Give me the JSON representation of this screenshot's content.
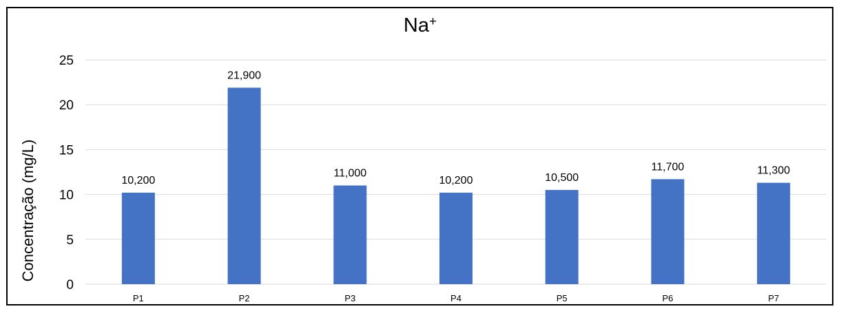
{
  "chart_data": {
    "type": "bar",
    "title": "Na",
    "title_superscript": "+",
    "xlabel": "",
    "ylabel": "Concentração (mg/L)",
    "categories": [
      "P1",
      "P2",
      "P3",
      "P4",
      "P5",
      "P6",
      "P7"
    ],
    "values": [
      10.2,
      21.9,
      11.0,
      10.2,
      10.5,
      11.7,
      11.3
    ],
    "data_labels": [
      "10,200",
      "21,900",
      "11,000",
      "10,200",
      "10,500",
      "11,700",
      "11,300"
    ],
    "yticks": [
      "0",
      "5",
      "10",
      "15",
      "20",
      "25"
    ],
    "ylim": [
      0,
      25
    ],
    "grid": true,
    "legend": "none",
    "bar_color": "#4472C4",
    "grid_color": "#D9D9D9"
  }
}
